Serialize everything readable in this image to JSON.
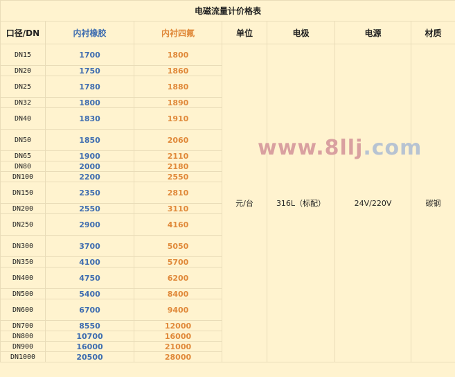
{
  "title": "电磁流量计价格表",
  "headers": [
    "口径/DN",
    "内衬橡胶",
    "内衬四氟",
    "单位",
    "电极",
    "电源",
    "材质"
  ],
  "rows": [
    {
      "dn": "DN15",
      "rubber": "1700",
      "ptfe": "1800",
      "h": 32
    },
    {
      "dn": "DN20",
      "rubber": "1750",
      "ptfe": "1860",
      "h": 16
    },
    {
      "dn": "DN25",
      "rubber": "1780",
      "ptfe": "1880",
      "h": 32
    },
    {
      "dn": "DN32",
      "rubber": "1800",
      "ptfe": "1890",
      "h": 16
    },
    {
      "dn": "DN40",
      "rubber": "1830",
      "ptfe": "1910",
      "h": 32
    },
    {
      "dn": "DN50",
      "rubber": "1850",
      "ptfe": "2060",
      "h": 32
    },
    {
      "dn": "DN65",
      "rubber": "1900",
      "ptfe": "2110",
      "h": 16
    },
    {
      "dn": "DN80",
      "rubber": "2000",
      "ptfe": "2180",
      "h": 16
    },
    {
      "dn": "DN100",
      "rubber": "2200",
      "ptfe": "2550",
      "h": 16
    },
    {
      "dn": "DN150",
      "rubber": "2350",
      "ptfe": "2810",
      "h": 32
    },
    {
      "dn": "DN200",
      "rubber": "2550",
      "ptfe": "3110",
      "h": 16
    },
    {
      "dn": "DN250",
      "rubber": "2900",
      "ptfe": "4160",
      "h": 32
    },
    {
      "dn": "DN300",
      "rubber": "3700",
      "ptfe": "5050",
      "h": 32
    },
    {
      "dn": "DN350",
      "rubber": "4100",
      "ptfe": "5700",
      "h": 16
    },
    {
      "dn": "DN400",
      "rubber": "4750",
      "ptfe": "6200",
      "h": 32
    },
    {
      "dn": "DN500",
      "rubber": "5400",
      "ptfe": "8400",
      "h": 16
    },
    {
      "dn": "DN600",
      "rubber": "6700",
      "ptfe": "9400",
      "h": 32
    },
    {
      "dn": "DN700",
      "rubber": "8550",
      "ptfe": "12000",
      "h": 16
    },
    {
      "dn": "DN800",
      "rubber": "10700",
      "ptfe": "16000",
      "h": 16
    },
    {
      "dn": "DN900",
      "rubber": "16000",
      "ptfe": "21000",
      "h": 16
    },
    {
      "dn": "DN1000",
      "rubber": "20500",
      "ptfe": "28000",
      "h": 16
    }
  ],
  "merged": {
    "unit": "元/台",
    "electrode": "316L（标配）",
    "power": "24V/220V",
    "material": "碳钢"
  },
  "watermark": {
    "part1": "www.8llj",
    "part2": ".com"
  },
  "colors": {
    "background": "#fff3cf",
    "rubber": "#3f6db0",
    "ptfe": "#e0893a"
  }
}
